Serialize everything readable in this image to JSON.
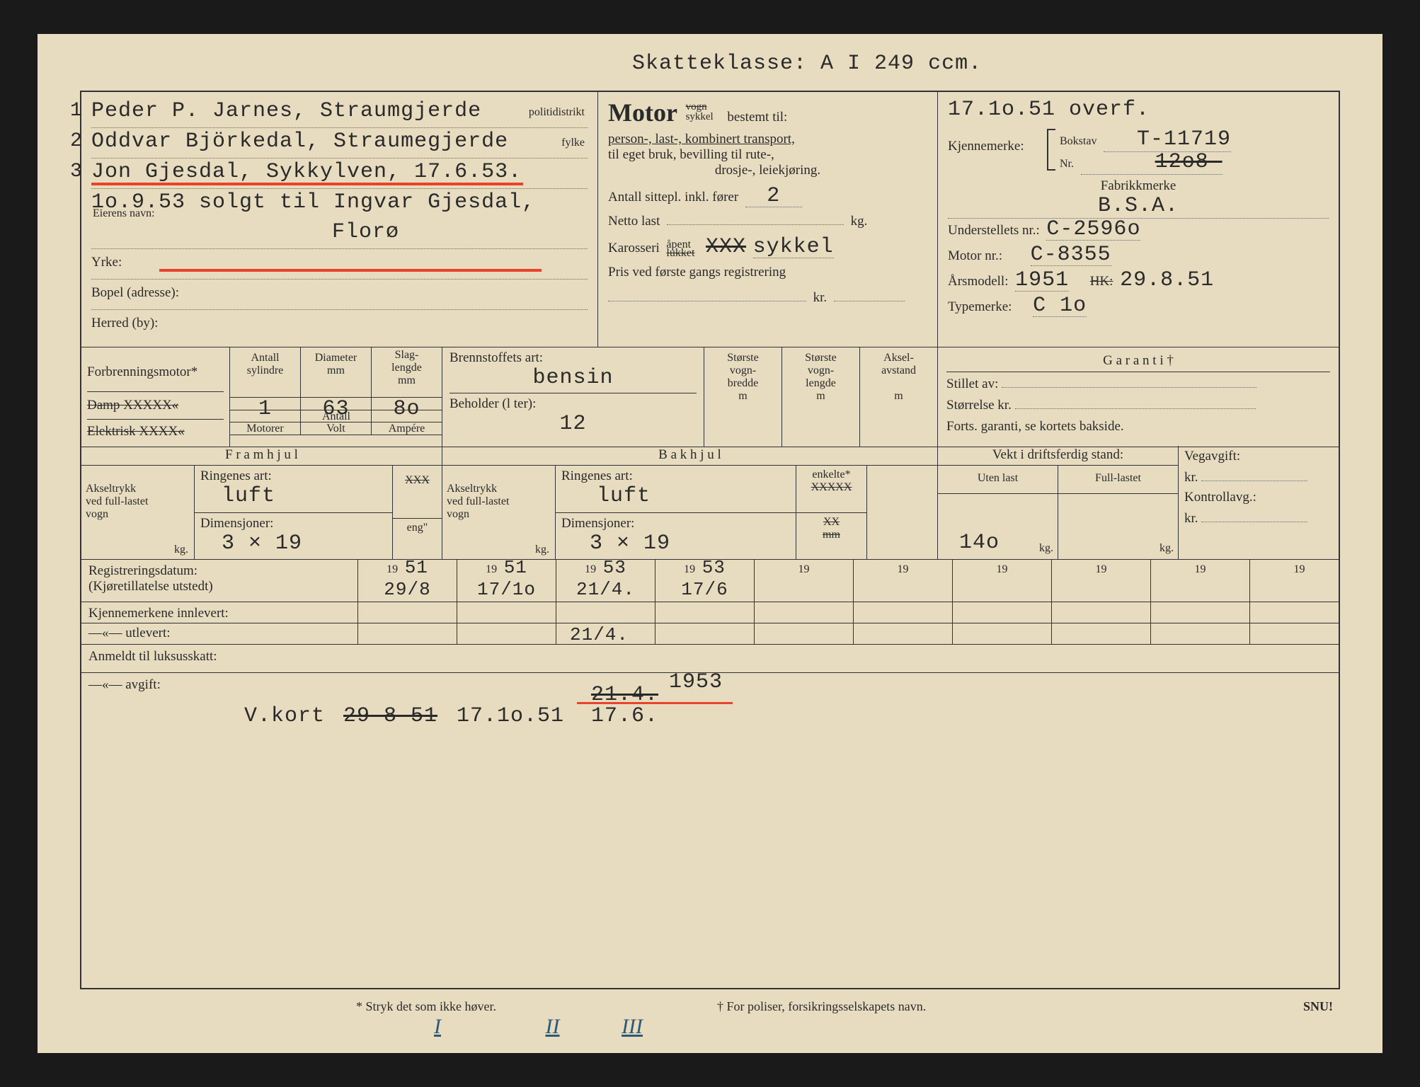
{
  "header": {
    "skatteklasse": "Skatteklasse: A I 249 ccm."
  },
  "owners": {
    "line1_num": "1",
    "line1": "Peder P. Jarnes, Straumgjerde",
    "line1_suffix": "politidistrikt",
    "line2_num": "2",
    "line2": "Oddvar Björkedal, Straumegjerde",
    "line2_suffix": "fylke",
    "line3_num": "3",
    "line3": "Jon Gjesdal, Sykkylven, 17.6.53.",
    "line4": "1o.9.53 solgt til  Ingvar Gjesdal,",
    "eierens_navn_label": "Eierens navn:",
    "line5": "Florø",
    "yrke_label": "Yrke:",
    "bopel_label": "Bopel (adresse):",
    "herred_label": "Herred (by):"
  },
  "motor": {
    "title": "Motor",
    "sub_vogn": "vogn",
    "sub_sykkel": "sykkel",
    "bestemt": "bestemt til:",
    "desc1": "person-, last-, kombinert transport,",
    "desc2": "til eget bruk, bevilling til rute-,",
    "desc3": "drosje-, leiekjøring.",
    "antall_sitte_label": "Antall sittepl. inkl. fører",
    "antall_sitte_value": "2",
    "netto_last_label": "Netto last",
    "netto_last_unit": "kg.",
    "karosseri_label": "Karosseri",
    "karosseri_apent": "åpent",
    "karosseri_lukket": "lukket",
    "karosseri_xxx": "XXX",
    "karosseri_value": "sykkel",
    "pris_label": "Pris ved første gangs registrering",
    "pris_kr": "kr."
  },
  "right": {
    "overf": "17.1o.51 overf.",
    "kjennemerke_label": "Kjennemerke:",
    "bokstav_label": "Bokstav",
    "bokstav_value": "T-11719",
    "nr_label": "Nr.",
    "nr_value": "12o8-",
    "nr_value_strike": true,
    "fabrikkmerke_label": "Fabrikkmerke",
    "fabrikkmerke_value": "B.S.A.",
    "understell_label": "Understellets nr.:",
    "understell_value": "C-2596o",
    "motornr_label": "Motor nr.:",
    "motornr_value": "C-8355",
    "arsmodell_label": "Årsmodell:",
    "arsmodell_value": "1951",
    "hk_label": "HK:",
    "hk_value": "29.8.51",
    "typemerke_label": "Typemerke:",
    "typemerke_value": "C 1o"
  },
  "engine": {
    "forbrenning_label": "Forbrenningsmotor*",
    "damp_label": "Damp XXXXX«",
    "elektrisk_label": "Elektrisk XXXX«",
    "antall_sylindre": "Antall\nsylindre",
    "antall_sylindre_val": "1",
    "diameter": "Diameter\nmm",
    "diameter_val": "63",
    "slaglengde": "Slag-\nlengde\nmm",
    "slaglengde_val": "8o",
    "motorer": "Motorer",
    "antall": "Antall",
    "volt": "Volt",
    "ampere": "Ampére",
    "brennstoff_label": "Brennstoffets art:",
    "brennstoff_val": "bensin",
    "beholder_label": "Beholder (l ter):",
    "beholder_val": "12",
    "storste_bredde": "Største\nvogn-\nbredde\nm",
    "storste_lengde": "Største\nvogn-\nlengde\nm",
    "aksel_avstand": "Aksel-\navstand\n\nm",
    "garanti_label": "G a r a n t i †",
    "stillet_av": "Stillet av:",
    "storrelse": "Størrelse kr.",
    "forts": "Forts. garanti, se kortets bakside."
  },
  "wheels": {
    "framhjul": "F r a m h j u l",
    "bakhjul": "B a k h j u l",
    "akseltrykk": "Akseltrykk\nved full-lastet\nvogn",
    "kg": "kg.",
    "ringenes_art": "Ringenes art:",
    "ringenes_val_f": "luft",
    "ringenes_val_b": "luft",
    "dimensjoner": "Dimensjoner:",
    "dim_f": "3 × 19",
    "dim_b": "3 × 19",
    "xxx": "XXX",
    "eng": "eng\"",
    "enkelte": "enkelte*",
    "xxxxx": "XXXXX",
    "xx": "XX",
    "mm": "mm",
    "vekt_label": "Vekt i driftsferdig stand:",
    "uten_last": "Uten last",
    "full_lastet": "Full-lastet",
    "uten_last_val": "14o",
    "vegavgift": "Vegavgift:",
    "kontrollavg": "Kontrollavg.:",
    "kr": "kr."
  },
  "reg": {
    "reg_label": "Registreringsdatum:",
    "kjoretill_label": "(Kjøretillatelse utstedt)",
    "kjenne_innlevert": "Kjennemerkene innlevert:",
    "utlevert": "—«—        utlevert:",
    "years": [
      "51",
      "51",
      "53",
      "53",
      "",
      "",
      "",
      "",
      "",
      ""
    ],
    "year_prefix": "19",
    "dates": [
      "29/8",
      "17/1o",
      "21/4.",
      "17/6",
      "",
      "",
      "",
      "",
      "",
      ""
    ],
    "utlevert_dates": [
      "",
      "",
      "21/4.",
      "",
      "",
      "",
      "",
      "",
      "",
      ""
    ]
  },
  "bottom": {
    "anmeldt": "Anmeldt til luksusskatt:",
    "avgift_label": "—«—       avgift:",
    "avgift_val1": "V.kort",
    "avgift_val2": "29-8-51",
    "avgift_val3": "17.1o.51",
    "avgift_val4": "21.4.",
    "avgift_val5": "1953",
    "avgift_val6": "17.6."
  },
  "footer": {
    "stryk": "* Stryk det som ikke høver.",
    "poliser": "† For poliser, forsikringsselskapets navn.",
    "snu": "SNU!",
    "roman": [
      "I",
      "II",
      "III"
    ]
  }
}
